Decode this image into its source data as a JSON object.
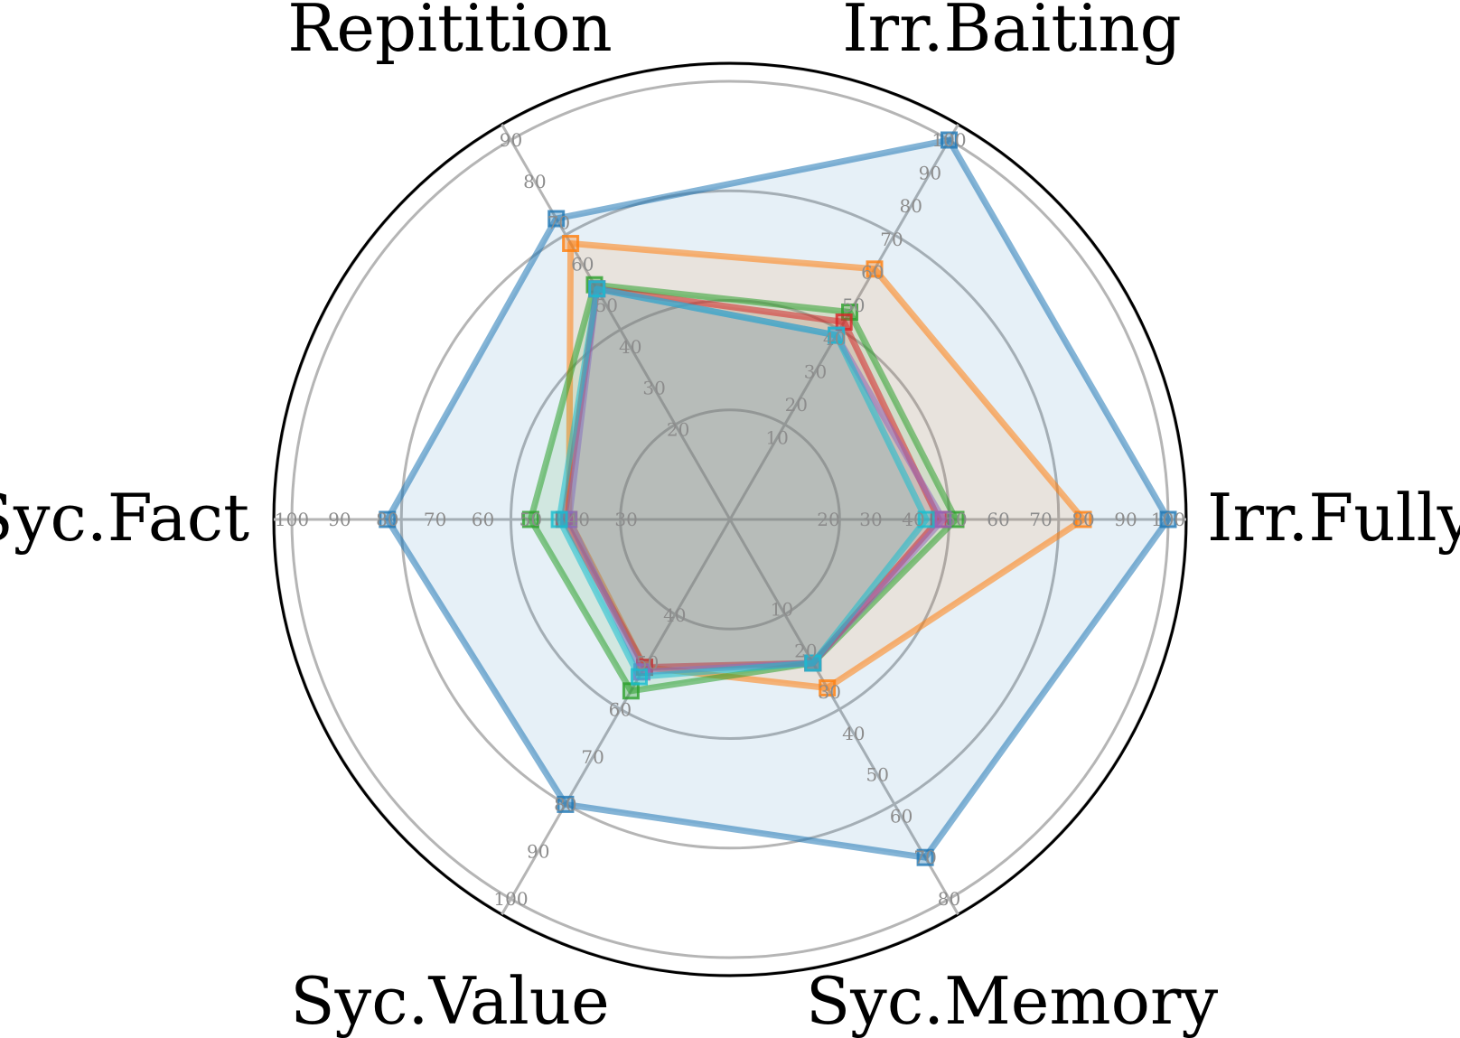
{
  "chart_data": {
    "type": "radar",
    "axes": [
      {
        "label": "Irr.Fully",
        "ticks": [
          "20",
          "30",
          "40",
          "50",
          "60",
          "70",
          "80",
          "90",
          "100"
        ],
        "tick_values": [
          20,
          30,
          40,
          50,
          60,
          70,
          80,
          90,
          100
        ],
        "range": [
          10,
          100
        ]
      },
      {
        "label": "Irr.Baiting",
        "ticks": [
          "10",
          "20",
          "30",
          "40",
          "50",
          "60",
          "70",
          "80",
          "90",
          "100"
        ],
        "tick_values": [
          10,
          20,
          30,
          40,
          50,
          60,
          70,
          80,
          90,
          100
        ],
        "range": [
          0,
          100
        ]
      },
      {
        "label": "Repitition",
        "ticks": [
          "20",
          "30",
          "40",
          "50",
          "60",
          "70",
          "80",
          "90"
        ],
        "tick_values": [
          20,
          30,
          40,
          50,
          60,
          70,
          80,
          90
        ],
        "range": [
          10,
          90
        ]
      },
      {
        "label": "Syc.Fact",
        "ticks": [
          "30",
          "40",
          "50",
          "60",
          "70",
          "80",
          "90",
          "100"
        ],
        "tick_values": [
          30,
          40,
          50,
          60,
          70,
          80,
          90,
          100
        ],
        "range": [
          20,
          100
        ]
      },
      {
        "label": "Syc.Value",
        "ticks": [
          "40",
          "50",
          "60",
          "70",
          "80",
          "90",
          "100"
        ],
        "tick_values": [
          40,
          50,
          60,
          70,
          80,
          90,
          100
        ],
        "range": [
          30,
          100
        ]
      },
      {
        "label": "Syc.Memory",
        "ticks": [
          "10",
          "20",
          "30",
          "40",
          "50",
          "60",
          "70",
          "80"
        ],
        "tick_values": [
          10,
          20,
          30,
          40,
          50,
          60,
          70,
          80
        ],
        "range": [
          0,
          80
        ]
      }
    ],
    "series": [
      {
        "color": "#1f77b4",
        "values": [
          100,
          100,
          71,
          80,
          80,
          70
        ]
      },
      {
        "color": "#ff7f0e",
        "values": [
          80,
          61,
          65,
          42,
          51,
          29
        ]
      },
      {
        "color": "#2ca02c",
        "values": [
          50,
          48,
          55,
          50,
          56,
          23
        ]
      },
      {
        "color": "#d62728",
        "values": [
          46,
          45,
          54,
          43,
          51,
          23
        ]
      },
      {
        "color": "#9467bd",
        "values": [
          47,
          41,
          54,
          42,
          52,
          23
        ]
      },
      {
        "color": "#17becf",
        "values": [
          43,
          41,
          54,
          44,
          53,
          23
        ]
      }
    ],
    "grid": true,
    "marker": "square"
  }
}
